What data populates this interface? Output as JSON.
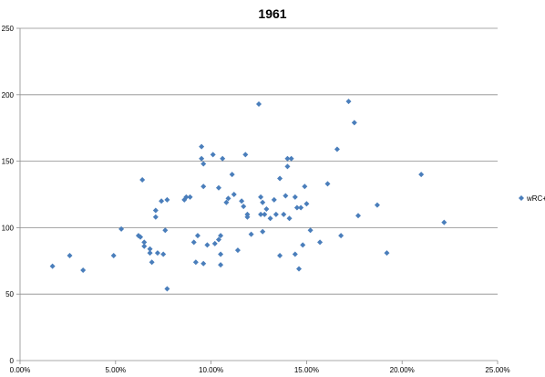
{
  "chart_data": {
    "type": "scatter",
    "title": "1961",
    "xlabel": "",
    "ylabel": "",
    "xlim": [
      0,
      0.25
    ],
    "ylim": [
      0,
      250
    ],
    "x_ticks": [
      0,
      0.05,
      0.1,
      0.15,
      0.2,
      0.25
    ],
    "x_tick_labels": [
      "0.00%",
      "5.00%",
      "10.00%",
      "15.00%",
      "20.00%",
      "25.00%"
    ],
    "y_ticks": [
      0,
      50,
      100,
      150,
      200,
      250
    ],
    "y_tick_labels": [
      "0",
      "50",
      "100",
      "150",
      "200",
      "250"
    ],
    "grid": "horizontal",
    "legend_position": "right",
    "marker": "diamond",
    "color": "#4a7ebb",
    "series": [
      {
        "name": "wRC+",
        "points": [
          [
            0.017,
            71
          ],
          [
            0.026,
            79
          ],
          [
            0.033,
            68
          ],
          [
            0.049,
            79
          ],
          [
            0.053,
            99
          ],
          [
            0.062,
            94
          ],
          [
            0.063,
            93
          ],
          [
            0.064,
            136
          ],
          [
            0.065,
            89
          ],
          [
            0.065,
            86
          ],
          [
            0.068,
            84
          ],
          [
            0.068,
            81
          ],
          [
            0.069,
            74
          ],
          [
            0.071,
            113
          ],
          [
            0.071,
            108
          ],
          [
            0.072,
            81
          ],
          [
            0.074,
            120
          ],
          [
            0.075,
            80
          ],
          [
            0.076,
            98
          ],
          [
            0.077,
            121
          ],
          [
            0.077,
            54
          ],
          [
            0.086,
            121
          ],
          [
            0.087,
            123
          ],
          [
            0.089,
            123
          ],
          [
            0.091,
            89
          ],
          [
            0.092,
            74
          ],
          [
            0.093,
            94
          ],
          [
            0.095,
            161
          ],
          [
            0.095,
            152
          ],
          [
            0.096,
            148
          ],
          [
            0.096,
            131
          ],
          [
            0.096,
            73
          ],
          [
            0.098,
            87
          ],
          [
            0.101,
            155
          ],
          [
            0.102,
            88
          ],
          [
            0.104,
            130
          ],
          [
            0.104,
            91
          ],
          [
            0.105,
            94
          ],
          [
            0.105,
            80
          ],
          [
            0.105,
            72
          ],
          [
            0.106,
            152
          ],
          [
            0.108,
            119
          ],
          [
            0.109,
            122
          ],
          [
            0.111,
            140
          ],
          [
            0.112,
            125
          ],
          [
            0.114,
            83
          ],
          [
            0.116,
            120
          ],
          [
            0.117,
            116
          ],
          [
            0.118,
            155
          ],
          [
            0.119,
            110
          ],
          [
            0.119,
            108
          ],
          [
            0.121,
            95
          ],
          [
            0.125,
            193
          ],
          [
            0.126,
            123
          ],
          [
            0.126,
            110
          ],
          [
            0.127,
            119
          ],
          [
            0.127,
            97
          ],
          [
            0.128,
            110
          ],
          [
            0.129,
            114
          ],
          [
            0.131,
            107
          ],
          [
            0.133,
            121
          ],
          [
            0.134,
            110
          ],
          [
            0.136,
            137
          ],
          [
            0.136,
            79
          ],
          [
            0.138,
            110
          ],
          [
            0.139,
            124
          ],
          [
            0.14,
            152
          ],
          [
            0.14,
            146
          ],
          [
            0.141,
            107
          ],
          [
            0.142,
            152
          ],
          [
            0.144,
            80
          ],
          [
            0.144,
            123
          ],
          [
            0.145,
            115
          ],
          [
            0.146,
            69
          ],
          [
            0.147,
            115
          ],
          [
            0.148,
            87
          ],
          [
            0.149,
            131
          ],
          [
            0.15,
            118
          ],
          [
            0.152,
            98
          ],
          [
            0.157,
            89
          ],
          [
            0.161,
            133
          ],
          [
            0.166,
            159
          ],
          [
            0.168,
            94
          ],
          [
            0.172,
            195
          ],
          [
            0.175,
            179
          ],
          [
            0.177,
            109
          ],
          [
            0.187,
            117
          ],
          [
            0.192,
            81
          ],
          [
            0.21,
            140
          ],
          [
            0.222,
            104
          ]
        ]
      }
    ]
  }
}
